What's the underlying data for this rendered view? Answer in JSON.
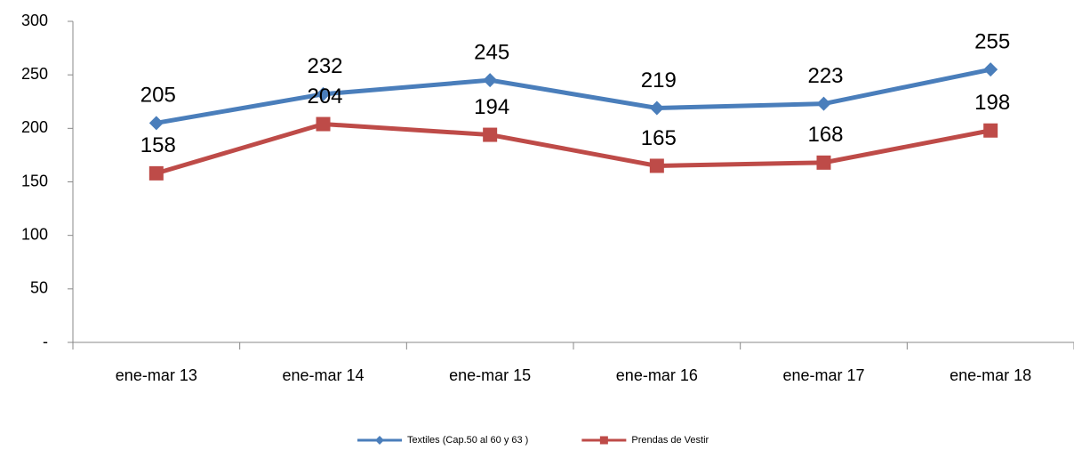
{
  "chart_data": {
    "type": "line",
    "categories": [
      "ene-mar 13",
      "ene-mar 14",
      "ene-mar 15",
      "ene-mar 16",
      "ene-mar 17",
      "ene-mar 18"
    ],
    "series": [
      {
        "name": "Textiles (Cap.50 al 60 y 63 )",
        "color": "#4a7ebb",
        "marker": "diamond",
        "values": [
          205,
          232,
          245,
          219,
          223,
          255
        ]
      },
      {
        "name": "Prendas de Vestir",
        "color": "#be4b48",
        "marker": "square",
        "values": [
          158,
          204,
          194,
          165,
          168,
          198
        ]
      }
    ],
    "ylim": [
      0,
      300
    ],
    "yticks": [
      {
        "value": 0,
        "label": "-"
      },
      50,
      100,
      150,
      200,
      250,
      300
    ],
    "legend": "bottom"
  }
}
